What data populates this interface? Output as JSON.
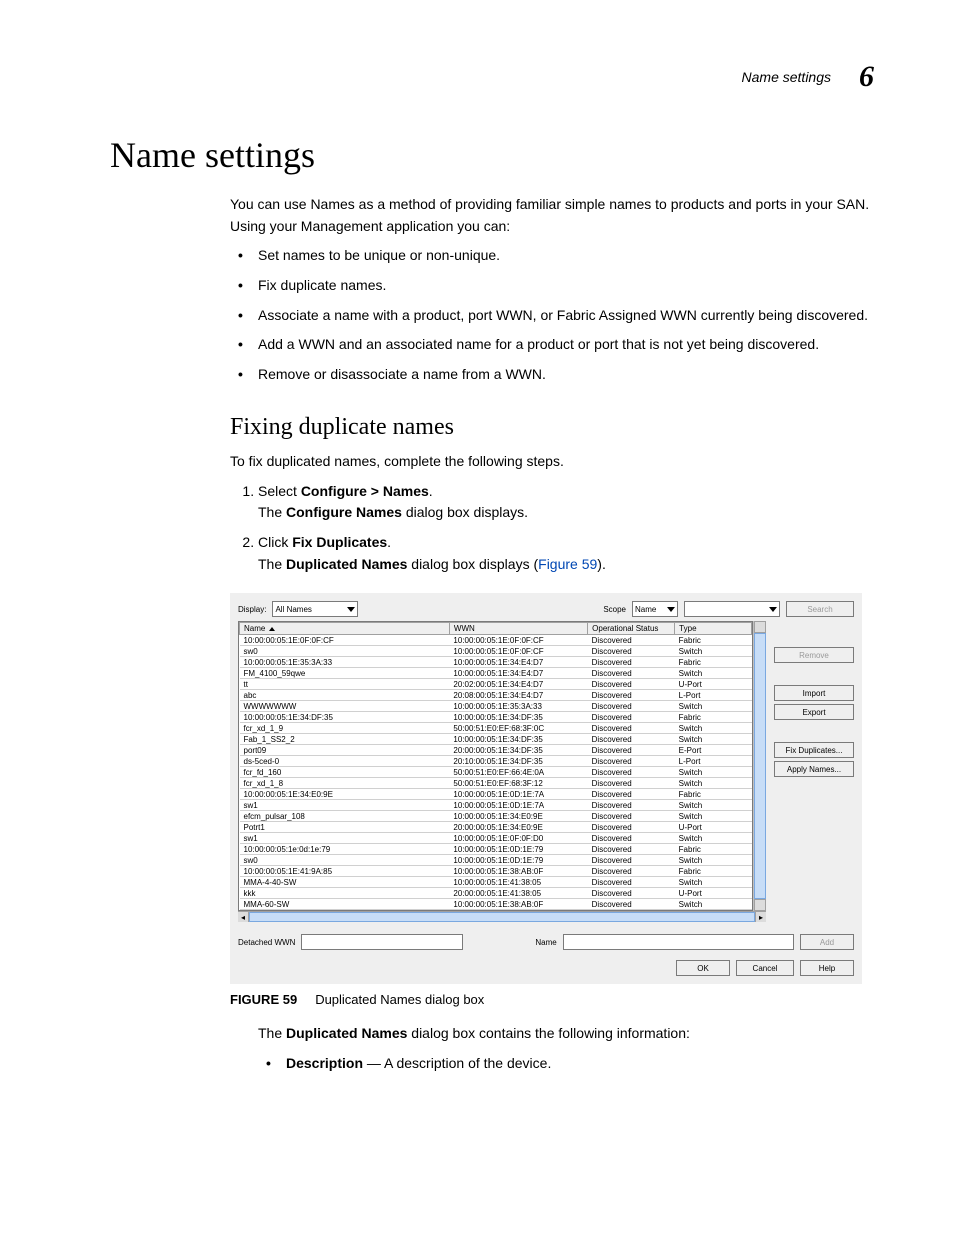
{
  "header": {
    "title": "Name settings",
    "chapter": "6"
  },
  "h1": "Name settings",
  "intro": "You can use Names as a method of providing familiar simple names to products and ports in your SAN. Using your Management application you can:",
  "bullets": [
    "Set names to be unique or non-unique.",
    "Fix duplicate names.",
    "Associate a name with a product, port WWN, or Fabric Assigned WWN currently being discovered.",
    "Add a WWN and an associated name for a product or port that is not yet being discovered.",
    "Remove or disassociate a name from a WWN."
  ],
  "h2": "Fixing duplicate names",
  "p1": "To fix duplicated names, complete the following steps.",
  "steps": [
    {
      "pre": "Select ",
      "bold": "Configure > Names",
      "post": ".",
      "detail_pre": "The ",
      "detail_bold": "Configure Names",
      "detail_post": " dialog box displays."
    },
    {
      "pre": "Click ",
      "bold": "Fix Duplicates",
      "post": ".",
      "detail_pre": "The ",
      "detail_bold": "Duplicated Names",
      "detail_post": " dialog box displays (",
      "detail_link": "Figure 59",
      "detail_end": ")."
    }
  ],
  "dialog": {
    "top": {
      "display_lbl": "Display:",
      "display_val": "All Names",
      "scope_lbl": "Scope",
      "scope_val": "Name",
      "search_btn": "Search"
    },
    "columns": [
      "Name",
      "WWN",
      "Operational Status",
      "Type"
    ],
    "rows": [
      [
        "10:00:00:05:1E:0F:0F:CF",
        "10:00:00:05:1E:0F:0F:CF",
        "Discovered",
        "Fabric"
      ],
      [
        "sw0",
        "10:00:00:05:1E:0F:0F:CF",
        "Discovered",
        "Switch"
      ],
      [
        "10:00:00:05:1E:35:3A:33",
        "10:00:00:05:1E:34:E4:D7",
        "Discovered",
        "Fabric"
      ],
      [
        "FM_4100_59qwe",
        "10:00:00:05:1E:34:E4:D7",
        "Discovered",
        "Switch"
      ],
      [
        "tt",
        "20:02:00:05:1E:34:E4:D7",
        "Discovered",
        "U-Port"
      ],
      [
        "abc",
        "20:08:00:05:1E:34:E4:D7",
        "Discovered",
        "L-Port"
      ],
      [
        "WWWWWWW",
        "10:00:00:05:1E:35:3A:33",
        "Discovered",
        "Switch"
      ],
      [
        "10:00:00:05:1E:34:DF:35",
        "10:00:00:05:1E:34:DF:35",
        "Discovered",
        "Fabric"
      ],
      [
        "fcr_xd_1_9",
        "50:00:51:E0:EF:68:3F:0C",
        "Discovered",
        "Switch"
      ],
      [
        "Fab_1_SS2_2",
        "10:00:00:05:1E:34:DF:35",
        "Discovered",
        "Switch"
      ],
      [
        "port09",
        "20:00:00:05:1E:34:DF:35",
        "Discovered",
        "E-Port"
      ],
      [
        "ds-5ced-0",
        "20:10:00:05:1E:34:DF:35",
        "Discovered",
        "L-Port"
      ],
      [
        "fcr_fd_160",
        "50:00:51:E0:EF:66:4E:0A",
        "Discovered",
        "Switch"
      ],
      [
        "fcr_xd_1_8",
        "50:00:51:E0:EF:68:3F:12",
        "Discovered",
        "Switch"
      ],
      [
        "10:00:00:05:1E:34:E0:9E",
        "10:00:00:05:1E:0D:1E:7A",
        "Discovered",
        "Fabric"
      ],
      [
        "sw1",
        "10:00:00:05:1E:0D:1E:7A",
        "Discovered",
        "Switch"
      ],
      [
        "efcm_pulsar_108",
        "10:00:00:05:1E:34:E0:9E",
        "Discovered",
        "Switch"
      ],
      [
        "Potrt1",
        "20:00:00:05:1E:34:E0:9E",
        "Discovered",
        "U-Port"
      ],
      [
        "sw1",
        "10:00:00:05:1E:0F:0F:D0",
        "Discovered",
        "Switch"
      ],
      [
        "10:00:00:05:1e:0d:1e:79",
        "10:00:00:05:1E:0D:1E:79",
        "Discovered",
        "Fabric"
      ],
      [
        "sw0",
        "10:00:00:05:1E:0D:1E:79",
        "Discovered",
        "Switch"
      ],
      [
        "10:00:00:05:1E:41:9A:85",
        "10:00:00:05:1E:38:AB:0F",
        "Discovered",
        "Fabric"
      ],
      [
        "MMA-4-40-SW",
        "10:00:00:05:1E:41:38:05",
        "Discovered",
        "Switch"
      ],
      [
        "kkk",
        "20:00:00:05:1E:41:38:05",
        "Discovered",
        "U-Port"
      ],
      [
        "MMA-60-SW",
        "10:00:00:05:1E:38:AB:0F",
        "Discovered",
        "Switch"
      ]
    ],
    "side_buttons": {
      "remove": "Remove",
      "import": "Import",
      "export": "Export",
      "fixdup": "Fix Duplicates...",
      "apply": "Apply Names..."
    },
    "bottom": {
      "detached_lbl": "Detached WWN",
      "name_lbl": "Name",
      "add_btn": "Add"
    },
    "footer": {
      "ok": "OK",
      "cancel": "Cancel",
      "help": "Help"
    }
  },
  "figcap": {
    "num": "FIGURE 59",
    "text": "Duplicated Names dialog box"
  },
  "after": {
    "p_pre": "The ",
    "p_bold": "Duplicated Names",
    "p_post": " dialog box contains the following information:",
    "li_bold": "Description",
    "li_post": " — A description of the device."
  }
}
